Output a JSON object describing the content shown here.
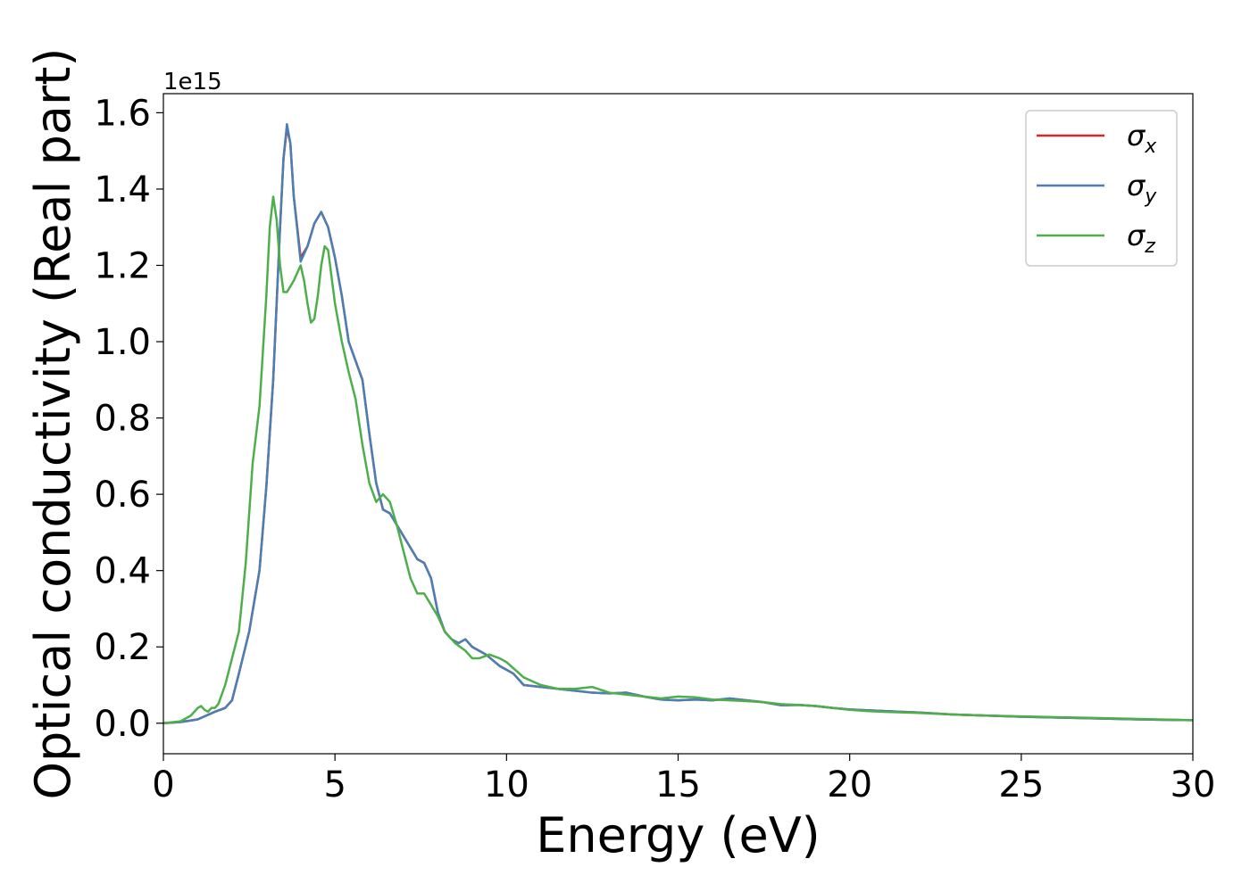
{
  "chart_data": {
    "type": "line",
    "xlabel": "Energy (eV)",
    "ylabel": "Optical conductivity (Real part)",
    "y_offset_label": "1e15",
    "xlim": [
      0,
      30
    ],
    "ylim": [
      -0.08,
      1.65
    ],
    "xticks": [
      0,
      5,
      10,
      15,
      20,
      25,
      30
    ],
    "yticks": [
      0.0,
      0.2,
      0.4,
      0.6,
      0.8,
      1.0,
      1.2,
      1.4,
      1.6
    ],
    "ytick_labels": [
      "0.0",
      "0.2",
      "0.4",
      "0.6",
      "0.8",
      "1.0",
      "1.2",
      "1.4",
      "1.6"
    ],
    "grid": false,
    "legend_position": "top-right",
    "series": [
      {
        "name": "σ",
        "subscript": "x",
        "color": "#d62728",
        "x": [
          0,
          0.5,
          1,
          1.5,
          1.8,
          2,
          2.2,
          2.5,
          2.8,
          3,
          3.2,
          3.4,
          3.5,
          3.6,
          3.7,
          3.8,
          4,
          4.2,
          4.4,
          4.6,
          4.8,
          5,
          5.2,
          5.4,
          5.6,
          5.8,
          6,
          6.2,
          6.4,
          6.6,
          6.8,
          7,
          7.2,
          7.4,
          7.6,
          7.8,
          8,
          8.2,
          8.4,
          8.6,
          8.8,
          9,
          9.2,
          9.4,
          9.6,
          9.8,
          10,
          10.2,
          10.5,
          11,
          11.5,
          12,
          12.5,
          13,
          13.5,
          14,
          14.5,
          15,
          15.5,
          16,
          16.5,
          17,
          17.5,
          18,
          18.5,
          19,
          19.5,
          20,
          20.5,
          21,
          21.5,
          22,
          23,
          24,
          25,
          26,
          27,
          28,
          29,
          30
        ],
        "y": [
          0,
          0.003,
          0.01,
          0.03,
          0.04,
          0.06,
          0.13,
          0.24,
          0.4,
          0.62,
          0.9,
          1.3,
          1.48,
          1.56,
          1.52,
          1.38,
          1.22,
          1.25,
          1.31,
          1.34,
          1.3,
          1.22,
          1.12,
          1.0,
          0.95,
          0.9,
          0.76,
          0.63,
          0.56,
          0.55,
          0.52,
          0.49,
          0.46,
          0.43,
          0.42,
          0.38,
          0.29,
          0.24,
          0.22,
          0.21,
          0.22,
          0.2,
          0.19,
          0.18,
          0.165,
          0.15,
          0.14,
          0.13,
          0.1,
          0.095,
          0.09,
          0.085,
          0.08,
          0.078,
          0.08,
          0.07,
          0.062,
          0.06,
          0.062,
          0.06,
          0.065,
          0.06,
          0.055,
          0.047,
          0.048,
          0.045,
          0.04,
          0.036,
          0.034,
          0.032,
          0.03,
          0.028,
          0.023,
          0.02,
          0.017,
          0.015,
          0.013,
          0.011,
          0.009,
          0.008
        ]
      },
      {
        "name": "σ",
        "subscript": "y",
        "color": "#4a7fb5",
        "x": [
          0,
          0.5,
          1,
          1.5,
          1.8,
          2,
          2.2,
          2.5,
          2.8,
          3,
          3.2,
          3.4,
          3.5,
          3.6,
          3.7,
          3.8,
          4,
          4.2,
          4.4,
          4.6,
          4.8,
          5,
          5.2,
          5.4,
          5.6,
          5.8,
          6,
          6.2,
          6.4,
          6.6,
          6.8,
          7,
          7.2,
          7.4,
          7.6,
          7.8,
          8,
          8.2,
          8.4,
          8.6,
          8.8,
          9,
          9.2,
          9.4,
          9.6,
          9.8,
          10,
          10.2,
          10.5,
          11,
          11.5,
          12,
          12.5,
          13,
          13.5,
          14,
          14.5,
          15,
          15.5,
          16,
          16.5,
          17,
          17.5,
          18,
          18.5,
          19,
          19.5,
          20,
          20.5,
          21,
          21.5,
          22,
          23,
          24,
          25,
          26,
          27,
          28,
          29,
          30
        ],
        "y": [
          0,
          0.003,
          0.01,
          0.03,
          0.04,
          0.06,
          0.13,
          0.24,
          0.4,
          0.62,
          0.9,
          1.3,
          1.48,
          1.57,
          1.52,
          1.38,
          1.21,
          1.25,
          1.31,
          1.34,
          1.3,
          1.22,
          1.12,
          1.0,
          0.95,
          0.9,
          0.76,
          0.63,
          0.56,
          0.55,
          0.52,
          0.49,
          0.46,
          0.43,
          0.42,
          0.38,
          0.29,
          0.24,
          0.22,
          0.21,
          0.22,
          0.2,
          0.19,
          0.18,
          0.165,
          0.15,
          0.14,
          0.13,
          0.1,
          0.095,
          0.09,
          0.085,
          0.08,
          0.078,
          0.08,
          0.07,
          0.062,
          0.06,
          0.062,
          0.06,
          0.065,
          0.06,
          0.055,
          0.047,
          0.048,
          0.045,
          0.04,
          0.036,
          0.034,
          0.032,
          0.03,
          0.028,
          0.023,
          0.02,
          0.017,
          0.015,
          0.013,
          0.011,
          0.009,
          0.008
        ]
      },
      {
        "name": "σ",
        "subscript": "z",
        "color": "#4daf4a",
        "x": [
          0,
          0.5,
          0.8,
          1,
          1.1,
          1.2,
          1.3,
          1.4,
          1.5,
          1.6,
          1.8,
          2,
          2.2,
          2.4,
          2.6,
          2.8,
          3,
          3.1,
          3.2,
          3.3,
          3.4,
          3.5,
          3.6,
          3.8,
          4,
          4.1,
          4.2,
          4.3,
          4.4,
          4.5,
          4.6,
          4.7,
          4.8,
          4.9,
          5,
          5.2,
          5.4,
          5.6,
          5.8,
          6,
          6.2,
          6.4,
          6.6,
          6.8,
          7,
          7.2,
          7.4,
          7.6,
          7.8,
          8,
          8.2,
          8.5,
          8.8,
          9,
          9.2,
          9.5,
          9.8,
          10,
          10.5,
          11,
          11.5,
          12,
          12.5,
          13,
          13.5,
          14,
          14.5,
          15,
          15.5,
          16,
          16.5,
          17,
          17.5,
          18,
          18.5,
          19,
          19.5,
          20,
          20.5,
          21,
          22,
          23,
          24,
          25,
          26,
          27,
          28,
          29,
          30
        ],
        "y": [
          0,
          0.005,
          0.02,
          0.04,
          0.045,
          0.035,
          0.03,
          0.04,
          0.04,
          0.05,
          0.1,
          0.17,
          0.24,
          0.42,
          0.68,
          0.83,
          1.12,
          1.3,
          1.38,
          1.32,
          1.2,
          1.13,
          1.13,
          1.16,
          1.2,
          1.16,
          1.1,
          1.05,
          1.06,
          1.12,
          1.2,
          1.25,
          1.24,
          1.17,
          1.1,
          1.0,
          0.92,
          0.85,
          0.73,
          0.63,
          0.58,
          0.6,
          0.58,
          0.52,
          0.45,
          0.38,
          0.34,
          0.34,
          0.31,
          0.28,
          0.24,
          0.21,
          0.19,
          0.17,
          0.17,
          0.18,
          0.17,
          0.16,
          0.12,
          0.1,
          0.09,
          0.09,
          0.095,
          0.08,
          0.075,
          0.07,
          0.065,
          0.07,
          0.068,
          0.062,
          0.06,
          0.058,
          0.055,
          0.05,
          0.048,
          0.045,
          0.04,
          0.035,
          0.032,
          0.03,
          0.027,
          0.023,
          0.02,
          0.018,
          0.016,
          0.014,
          0.012,
          0.01,
          0.008
        ]
      }
    ]
  }
}
